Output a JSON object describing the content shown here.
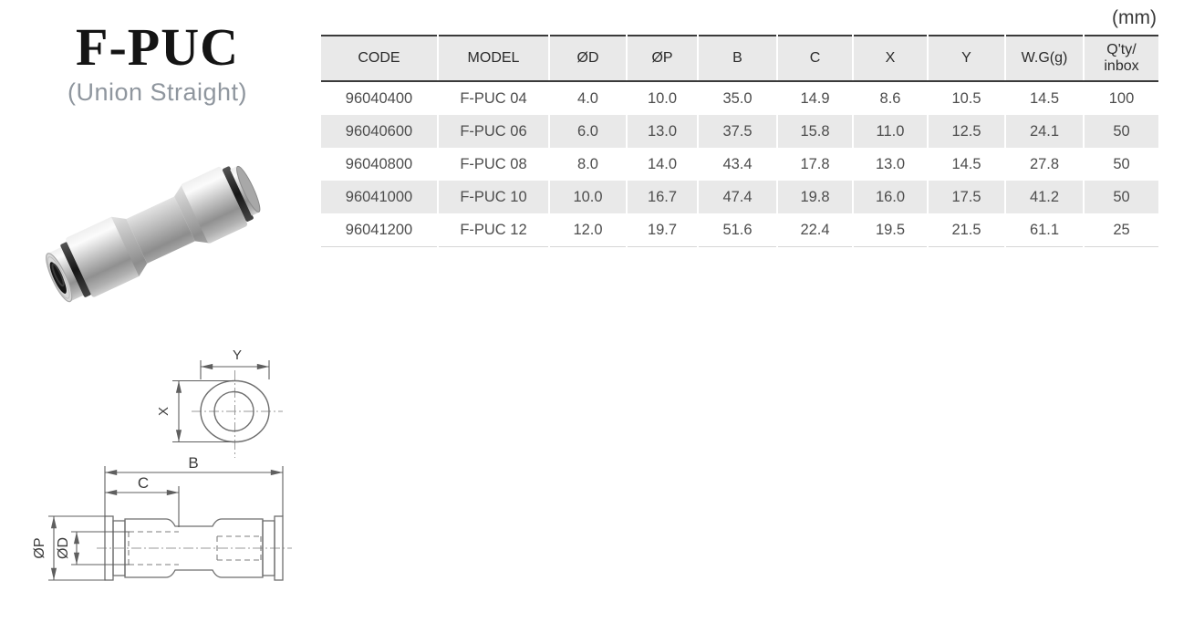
{
  "page": {
    "unit_label": "(mm)"
  },
  "header": {
    "title": "F-PUC",
    "subtitle": "(Union Straight)"
  },
  "product_photo": {
    "description": "metal push-to-connect union straight fitting photo"
  },
  "table": {
    "columns": [
      {
        "label": "CODE"
      },
      {
        "label": "MODEL"
      },
      {
        "label": "ØD"
      },
      {
        "label": "ØP"
      },
      {
        "label": "B"
      },
      {
        "label": "C"
      },
      {
        "label": "X"
      },
      {
        "label": "Y"
      },
      {
        "label": "W.G(g)"
      },
      {
        "label": "Q'ty/",
        "label2": "inbox"
      }
    ],
    "rows": [
      [
        "96040400",
        "F-PUC 04",
        "4.0",
        "10.0",
        "35.0",
        "14.9",
        "8.6",
        "10.5",
        "14.5",
        "100"
      ],
      [
        "96040600",
        "F-PUC 06",
        "6.0",
        "13.0",
        "37.5",
        "15.8",
        "11.0",
        "12.5",
        "24.1",
        "50"
      ],
      [
        "96040800",
        "F-PUC 08",
        "8.0",
        "14.0",
        "43.4",
        "17.8",
        "13.0",
        "14.5",
        "27.8",
        "50"
      ],
      [
        "96041000",
        "F-PUC 10",
        "10.0",
        "16.7",
        "47.4",
        "19.8",
        "16.0",
        "17.5",
        "41.2",
        "50"
      ],
      [
        "96041200",
        "F-PUC 12",
        "12.0",
        "19.7",
        "51.6",
        "22.4",
        "19.5",
        "21.5",
        "61.1",
        "25"
      ]
    ]
  },
  "drawings": {
    "top_view": {
      "dim_y": "Y",
      "dim_x": "X"
    },
    "side_view": {
      "dim_b": "B",
      "dim_c": "C",
      "dim_op": "ØP",
      "dim_od": "ØD"
    }
  },
  "colors": {
    "table_header_bg": "#e9e9e9",
    "table_alt_row_bg": "#e9e9e9",
    "table_border_dark": "#3a3a3a",
    "table_text": "#4d4d4d",
    "subtitle_text": "#8f969e",
    "drawing_line": "#6e6e6e"
  }
}
